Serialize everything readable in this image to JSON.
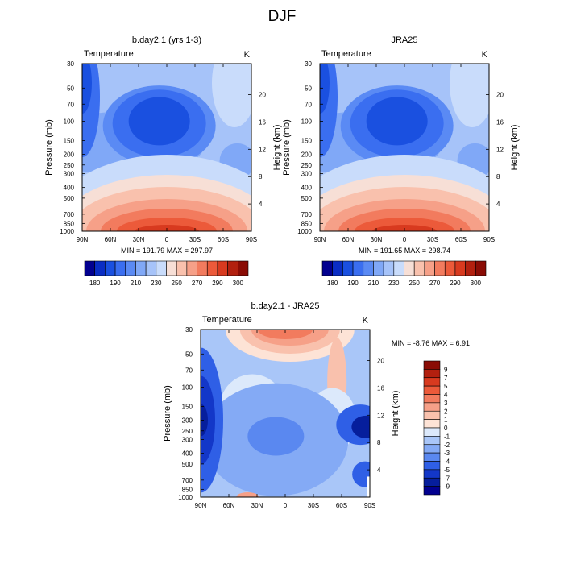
{
  "suptitle": "DJF",
  "chart_data": [
    {
      "type": "heatmap",
      "title": "b.day2.1 (yrs 1-3)",
      "left_label": "Temperature",
      "right_label": "K",
      "xlabel": "",
      "ylabel": "Pressure (mb)",
      "y2label": "Height (km)",
      "x_ticks": [
        "90N",
        "60N",
        "30N",
        "0",
        "30S",
        "60S",
        "90S"
      ],
      "x_range": [
        90,
        -90
      ],
      "y_ticks": [
        30,
        50,
        70,
        100,
        150,
        200,
        250,
        300,
        400,
        500,
        700,
        850,
        1000
      ],
      "y_range": [
        1000,
        30
      ],
      "y_scale": "log",
      "height_ticks": [
        4,
        8,
        12,
        16,
        20
      ],
      "stats": "MIN = 191.79  MAX = 297.97",
      "min": 191.79,
      "max": 297.97,
      "colorbar_orientation": "horizontal",
      "colorbar_labels": [
        "180",
        "190",
        "210",
        "230",
        "250",
        "270",
        "290",
        "300"
      ],
      "colorbar_colors": [
        "#02008f",
        "#0a2dc4",
        "#1a50e0",
        "#3a6ef0",
        "#5a8af4",
        "#80a8f7",
        "#a6c3f9",
        "#c9dcfb",
        "#f7dfd6",
        "#f9c1ad",
        "#f6a088",
        "#f27b5e",
        "#ec5a3a",
        "#d83a1f",
        "#b2200f",
        "#8a0c05"
      ]
    },
    {
      "type": "heatmap",
      "title": "JRA25",
      "left_label": "Temperature",
      "right_label": "K",
      "xlabel": "",
      "ylabel": "Pressure (mb)",
      "y2label": "Height (km)",
      "x_ticks": [
        "90N",
        "60N",
        "30N",
        "0",
        "30S",
        "60S",
        "90S"
      ],
      "x_range": [
        90,
        -90
      ],
      "y_ticks": [
        30,
        50,
        70,
        100,
        150,
        200,
        250,
        300,
        400,
        500,
        700,
        850,
        1000
      ],
      "y_range": [
        1000,
        30
      ],
      "y_scale": "log",
      "height_ticks": [
        4,
        8,
        12,
        16,
        20
      ],
      "stats": "MIN = 191.65  MAX = 298.74",
      "min": 191.65,
      "max": 298.74,
      "colorbar_orientation": "horizontal",
      "colorbar_labels": [
        "180",
        "190",
        "210",
        "230",
        "250",
        "270",
        "290",
        "300"
      ],
      "colorbar_colors": [
        "#02008f",
        "#0a2dc4",
        "#1a50e0",
        "#3a6ef0",
        "#5a8af4",
        "#80a8f7",
        "#a6c3f9",
        "#c9dcfb",
        "#f7dfd6",
        "#f9c1ad",
        "#f6a088",
        "#f27b5e",
        "#ec5a3a",
        "#d83a1f",
        "#b2200f",
        "#8a0c05"
      ]
    },
    {
      "type": "heatmap",
      "title": "b.day2.1 - JRA25",
      "left_label": "Temperature",
      "right_label": "K",
      "xlabel": "",
      "ylabel": "Pressure (mb)",
      "y2label": "Height (km)",
      "x_ticks": [
        "90N",
        "60N",
        "30N",
        "0",
        "30S",
        "60S",
        "90S"
      ],
      "x_range": [
        90,
        -90
      ],
      "y_ticks": [
        30,
        50,
        70,
        100,
        150,
        200,
        250,
        300,
        400,
        500,
        700,
        850,
        1000
      ],
      "y_range": [
        1000,
        30
      ],
      "y_scale": "log",
      "height_ticks": [
        4,
        8,
        12,
        16,
        20
      ],
      "stats": "MIN =  -8.76  MAX =   6.91",
      "min": -8.76,
      "max": 6.91,
      "colorbar_orientation": "vertical",
      "colorbar_labels": [
        "9",
        "7",
        "5",
        "4",
        "3",
        "2",
        "1",
        "0",
        "-1",
        "-2",
        "-3",
        "-4",
        "-5",
        "-7",
        "-9"
      ],
      "colorbar_colors": [
        "#8a0c05",
        "#b2200f",
        "#d83a1f",
        "#ec5a3a",
        "#f27b5e",
        "#f6a088",
        "#f9c1ad",
        "#fde3d6",
        "#dce9fb",
        "#a9c6f8",
        "#84aaf5",
        "#5a88f0",
        "#2f5fe6",
        "#1337c8",
        "#061e9c",
        "#02008f"
      ]
    }
  ]
}
